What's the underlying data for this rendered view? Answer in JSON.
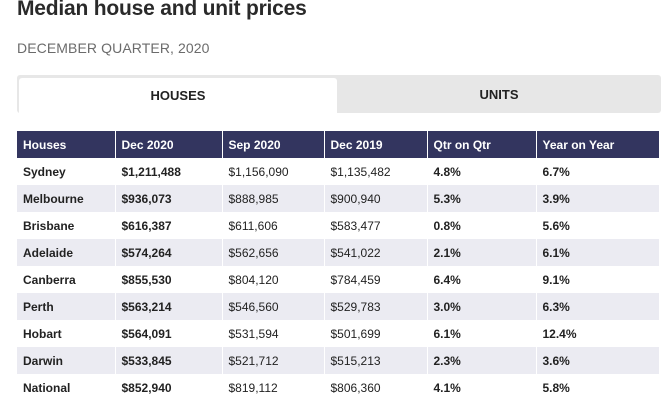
{
  "header": {
    "title": "Median house and unit prices",
    "subtitle": "DECEMBER QUARTER, 2020"
  },
  "tabs": {
    "houses": "HOUSES",
    "units": "UNITS",
    "active": "houses"
  },
  "table": {
    "columns": [
      "Houses",
      "Dec 2020",
      "Sep 2020",
      "Dec 2019",
      "Qtr on Qtr",
      "Year on Year"
    ],
    "rows": [
      [
        "Sydney",
        "$1,211,488",
        "$1,156,090",
        "$1,135,482",
        "4.8%",
        "6.7%"
      ],
      [
        "Melbourne",
        "$936,073",
        "$888,985",
        "$900,940",
        "5.3%",
        "3.9%"
      ],
      [
        "Brisbane",
        "$616,387",
        "$611,606",
        "$583,477",
        "0.8%",
        "5.6%"
      ],
      [
        "Adelaide",
        "$574,264",
        "$562,656",
        "$541,022",
        "2.1%",
        "6.1%"
      ],
      [
        "Canberra",
        "$855,530",
        "$804,120",
        "$784,459",
        "6.4%",
        "9.1%"
      ],
      [
        "Perth",
        "$563,214",
        "$546,560",
        "$529,783",
        "3.0%",
        "6.3%"
      ],
      [
        "Hobart",
        "$564,091",
        "$531,594",
        "$501,699",
        "6.1%",
        "12.4%"
      ],
      [
        "Darwin",
        "$533,845",
        "$521,712",
        "$515,213",
        "2.3%",
        "3.6%"
      ],
      [
        "National",
        "$852,940",
        "$819,112",
        "$806,360",
        "4.1%",
        "5.8%"
      ]
    ]
  },
  "colors": {
    "header_bg": "#33355f",
    "alt_row_bg": "#ebebf2",
    "tab_bar_bg": "#e7e7e7"
  }
}
